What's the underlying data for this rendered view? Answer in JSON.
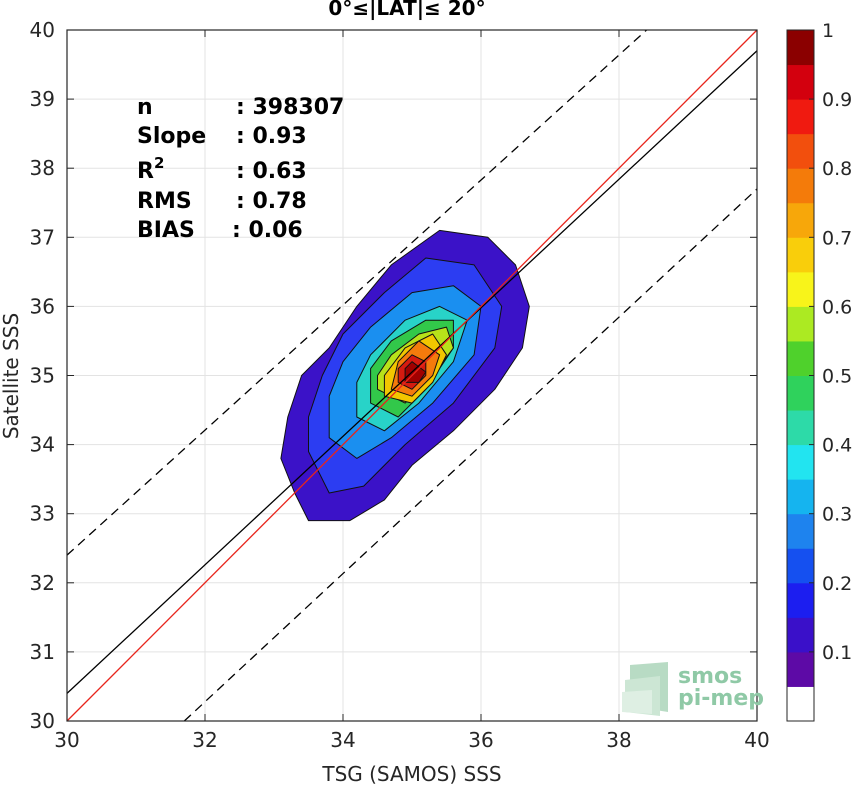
{
  "chart_data": {
    "type": "heatmap",
    "subtype": "filled-density-contour",
    "title": "0°≤|LAT|≤ 20°",
    "xlabel": "TSG (SAMOS) SSS",
    "ylabel": "Satellite SSS",
    "xlim": [
      30,
      40
    ],
    "ylim": [
      30,
      40
    ],
    "x_ticks": [
      30,
      32,
      34,
      36,
      38,
      40
    ],
    "y_ticks": [
      30,
      31,
      32,
      33,
      34,
      35,
      36,
      37,
      38,
      39,
      40
    ],
    "grid": true,
    "stats": [
      {
        "label": "n",
        "value": ": 398307"
      },
      {
        "label": "Slope",
        "value": ": 0.93"
      },
      {
        "label": "R",
        "sup": "2",
        "value": ": 0.63"
      },
      {
        "label": "RMS",
        "value": ": 0.78"
      },
      {
        "label": "BIAS",
        "value": ": 0.06"
      }
    ],
    "lines": {
      "identity": {
        "color": "#e8251c",
        "points": [
          [
            30,
            30
          ],
          [
            40,
            40
          ]
        ]
      },
      "fit": {
        "color": "#000000",
        "slope": 0.93,
        "points": [
          [
            30,
            30.4
          ],
          [
            40,
            39.7
          ]
        ]
      },
      "upper_bound": {
        "color": "#000000",
        "dash": true,
        "points": [
          [
            30,
            32.4
          ],
          [
            38.4,
            40
          ]
        ]
      },
      "lower_bound": {
        "color": "#000000",
        "dash": true,
        "points": [
          [
            31.7,
            30
          ],
          [
            40,
            37.7
          ]
        ]
      }
    },
    "contour_levels": [
      {
        "level": 0.05,
        "color": "#3b12c8",
        "points": [
          [
            33.3,
            33.3
          ],
          [
            33.5,
            32.9
          ],
          [
            34.1,
            32.9
          ],
          [
            34.6,
            33.2
          ],
          [
            35.0,
            33.7
          ],
          [
            35.6,
            34.2
          ],
          [
            36.2,
            34.8
          ],
          [
            36.6,
            35.4
          ],
          [
            36.7,
            36.0
          ],
          [
            36.5,
            36.6
          ],
          [
            36.1,
            37.0
          ],
          [
            35.4,
            37.1
          ],
          [
            34.7,
            36.6
          ],
          [
            34.2,
            36.0
          ],
          [
            33.8,
            35.4
          ],
          [
            33.4,
            35.0
          ],
          [
            33.2,
            34.4
          ],
          [
            33.1,
            33.8
          ]
        ]
      },
      {
        "level": 0.15,
        "color": "#2c3df2",
        "points": [
          [
            33.5,
            33.9
          ],
          [
            33.8,
            33.3
          ],
          [
            34.3,
            33.4
          ],
          [
            34.9,
            34.0
          ],
          [
            35.6,
            34.6
          ],
          [
            36.2,
            35.4
          ],
          [
            36.3,
            36.0
          ],
          [
            35.9,
            36.6
          ],
          [
            35.2,
            36.7
          ],
          [
            34.6,
            36.2
          ],
          [
            34.0,
            35.6
          ],
          [
            33.7,
            35.0
          ],
          [
            33.5,
            34.4
          ]
        ]
      },
      {
        "level": 0.25,
        "color": "#1a8ff0",
        "points": [
          [
            33.8,
            34.1
          ],
          [
            34.2,
            33.8
          ],
          [
            34.7,
            34.1
          ],
          [
            35.3,
            34.6
          ],
          [
            35.9,
            35.3
          ],
          [
            36.0,
            36.0
          ],
          [
            35.6,
            36.3
          ],
          [
            35.0,
            36.2
          ],
          [
            34.4,
            35.7
          ],
          [
            34.0,
            35.2
          ],
          [
            33.8,
            34.7
          ]
        ]
      },
      {
        "level": 0.35,
        "color": "#28d3c8",
        "points": [
          [
            34.2,
            34.4
          ],
          [
            34.6,
            34.2
          ],
          [
            35.1,
            34.6
          ],
          [
            35.6,
            35.2
          ],
          [
            35.8,
            35.8
          ],
          [
            35.4,
            36.0
          ],
          [
            34.9,
            35.8
          ],
          [
            34.4,
            35.3
          ],
          [
            34.2,
            34.9
          ]
        ]
      },
      {
        "level": 0.45,
        "color": "#32c84a",
        "points": [
          [
            34.4,
            34.6
          ],
          [
            34.8,
            34.4
          ],
          [
            35.2,
            34.8
          ],
          [
            35.6,
            35.4
          ],
          [
            35.6,
            35.8
          ],
          [
            35.2,
            35.8
          ],
          [
            34.7,
            35.5
          ],
          [
            34.4,
            35.1
          ]
        ]
      },
      {
        "level": 0.55,
        "color": "#b8e21a",
        "points": [
          [
            34.5,
            34.8
          ],
          [
            34.9,
            34.6
          ],
          [
            35.3,
            35.0
          ],
          [
            35.6,
            35.4
          ],
          [
            35.5,
            35.7
          ],
          [
            35.1,
            35.6
          ],
          [
            34.7,
            35.3
          ],
          [
            34.5,
            35.0
          ]
        ]
      },
      {
        "level": 0.65,
        "color": "#f2c600",
        "points": [
          [
            34.6,
            34.7
          ],
          [
            35.0,
            34.6
          ],
          [
            35.3,
            34.9
          ],
          [
            35.5,
            35.3
          ],
          [
            35.3,
            35.6
          ],
          [
            34.9,
            35.4
          ],
          [
            34.6,
            35.0
          ]
        ]
      },
      {
        "level": 0.75,
        "color": "#f47b0c",
        "points": [
          [
            34.7,
            34.8
          ],
          [
            35.0,
            34.7
          ],
          [
            35.3,
            35.0
          ],
          [
            35.4,
            35.3
          ],
          [
            35.1,
            35.5
          ],
          [
            34.8,
            35.2
          ]
        ]
      },
      {
        "level": 0.85,
        "color": "#d51b10",
        "points": [
          [
            34.8,
            34.9
          ],
          [
            35.0,
            34.8
          ],
          [
            35.2,
            35.0
          ],
          [
            35.2,
            35.2
          ],
          [
            35.0,
            35.3
          ],
          [
            34.8,
            35.1
          ]
        ]
      },
      {
        "level": 0.95,
        "color": "#a00000",
        "points": [
          [
            34.9,
            34.9
          ],
          [
            35.1,
            34.9
          ],
          [
            35.2,
            35.05
          ],
          [
            35.0,
            35.2
          ],
          [
            34.9,
            35.1
          ]
        ]
      }
    ],
    "colorbar": {
      "ticks": [
        "0.1",
        "0.2",
        "0.3",
        "0.4",
        "0.5",
        "0.6",
        "0.7",
        "0.8",
        "0.9",
        "1"
      ],
      "tick_values": [
        0.1,
        0.2,
        0.3,
        0.4,
        0.5,
        0.6,
        0.7,
        0.8,
        0.9,
        1.0
      ],
      "range": [
        0,
        1
      ],
      "colors": [
        "#ffffff",
        "#5d0aa6",
        "#3a10c9",
        "#1c1ef0",
        "#1550f0",
        "#1e83ee",
        "#15b4ef",
        "#22e4f0",
        "#2ddaa8",
        "#2fd25c",
        "#4fd12c",
        "#acea22",
        "#f8f41a",
        "#f9ce0b",
        "#f7a70a",
        "#f47b0a",
        "#f24f0d",
        "#f01a10",
        "#d3000e",
        "#8b0000"
      ]
    }
  },
  "logo": {
    "line1": "smos",
    "line2": "pi-mep"
  }
}
